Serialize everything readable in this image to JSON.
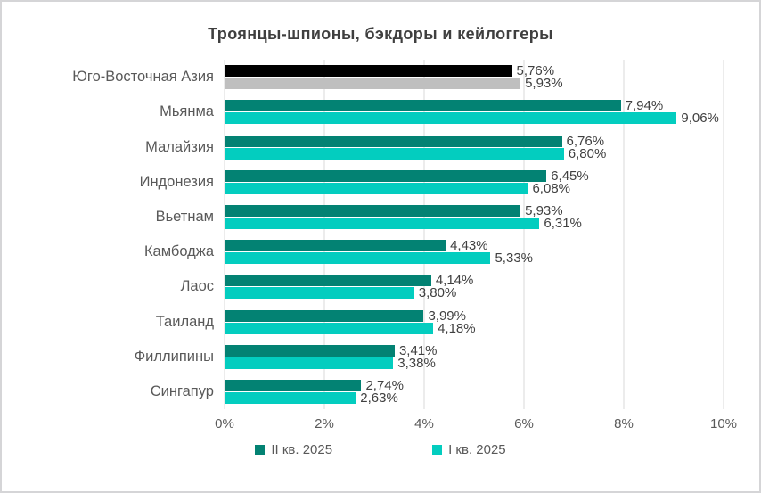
{
  "title": "Троянцы-шпионы, бэкдоры и кейлоггеры",
  "chart_data": {
    "type": "bar",
    "orientation": "horizontal",
    "title": "Троянцы-шпионы, бэкдоры и кейлоггеры",
    "categories": [
      "Юго-Восточная Азия",
      "Мьянма",
      "Малайзия",
      "Индонезия",
      "Вьетнам",
      "Камбоджа",
      "Лаос",
      "Таиланд",
      "Филлипины",
      "Сингапур"
    ],
    "series": [
      {
        "id": "q2-2025",
        "name": "II кв. 2025",
        "color": "#038273",
        "values": [
          5.76,
          7.94,
          6.76,
          6.45,
          5.93,
          4.43,
          4.14,
          3.99,
          3.41,
          2.74
        ],
        "labels": [
          "5,76%",
          "7,94%",
          "6,76%",
          "6,45%",
          "5,93%",
          "4,43%",
          "4,14%",
          "3,99%",
          "3,41%",
          "2,74%"
        ]
      },
      {
        "id": "q1-2025",
        "name": "I кв. 2025",
        "color": "#03cdbf",
        "values": [
          5.93,
          9.06,
          6.8,
          6.08,
          6.31,
          5.33,
          3.8,
          4.18,
          3.38,
          2.63
        ],
        "labels": [
          "5,93%",
          "9,06%",
          "6,80%",
          "6,08%",
          "6,31%",
          "5,33%",
          "3,80%",
          "4,18%",
          "3,38%",
          "2,63%"
        ]
      }
    ],
    "highlight_category": {
      "index": 0,
      "colors": [
        "#000000",
        "#bfbfbf"
      ]
    },
    "x_ticks": [
      "0%",
      "2%",
      "4%",
      "6%",
      "8%",
      "10%"
    ],
    "xlim": [
      0,
      10
    ],
    "grid": true,
    "legend_position": "bottom",
    "legend": [
      {
        "id": "q2-2025",
        "label": "II кв. 2025",
        "color": "#038273"
      },
      {
        "id": "q1-2025",
        "label": "I кв. 2025",
        "color": "#03cdbf"
      }
    ],
    "colors": {
      "grid": "#d9d9d9",
      "title_text": "#3f3f3f",
      "category_text": "#595959",
      "axis_text": "#595959",
      "value_text": "#404040",
      "background": "#ffffff"
    }
  }
}
